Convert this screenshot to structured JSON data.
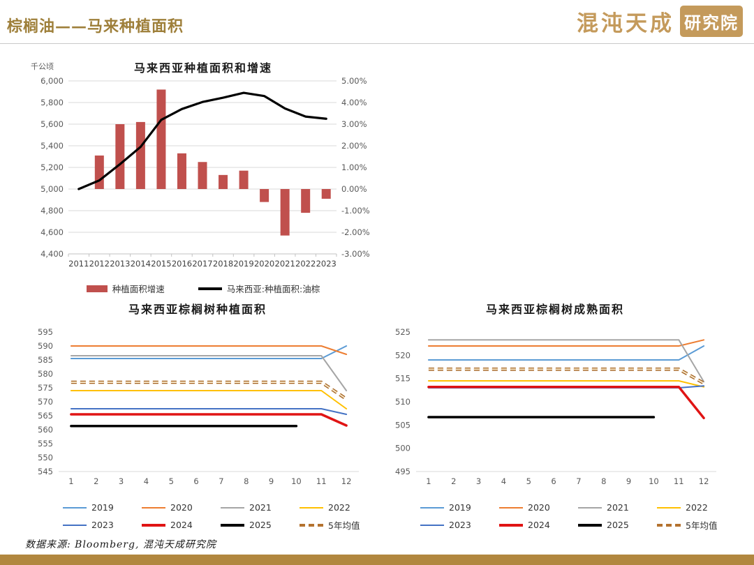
{
  "page": {
    "title": "棕榈油——马来种植面积",
    "logo": {
      "brand": "混沌天成",
      "suffix": "研究院"
    },
    "footer": {
      "source": "数据来源: Bloomberg, 混沌天成研究院"
    },
    "colors": {
      "accent_gold": "#9E7F3A",
      "logo_gold": "#C49A5B",
      "footer_bar": "#B1873F",
      "bar_red": "#C0504D",
      "grid_gray": "#DADADA",
      "axis_text": "#595959"
    }
  },
  "chart_data": [
    {
      "id": "area-growth",
      "type": "combo-bar-line",
      "title": "马来西亚种植面积和增速",
      "unit_label": "千公顷",
      "categories": [
        "2011",
        "2012",
        "2013",
        "2014",
        "2015",
        "2016",
        "2017",
        "2018",
        "2019",
        "2020",
        "2021",
        "2022",
        "2023"
      ],
      "left_axis": {
        "min": 4400,
        "max": 6000,
        "step": 200,
        "ticks": [
          "6,000",
          "5,800",
          "5,600",
          "5,400",
          "5,200",
          "5,000",
          "4,800",
          "4,600",
          "4,400"
        ]
      },
      "right_axis": {
        "min": -3,
        "max": 5,
        "step": 1,
        "ticks": [
          "5.00%",
          "4.00%",
          "3.00%",
          "2.00%",
          "1.00%",
          "0.00%",
          "-1.00%",
          "-2.00%",
          "-3.00%"
        ]
      },
      "grid": true,
      "legend_position": "bottom",
      "series": [
        {
          "name": "种植面积增速",
          "type": "bar",
          "axis": "right",
          "color": "#C0504D",
          "values": [
            null,
            1.55,
            3.0,
            3.1,
            4.6,
            1.65,
            1.25,
            0.65,
            0.85,
            -0.6,
            -2.15,
            -1.1,
            -0.45
          ]
        },
        {
          "name": "马来西亚:种植面积:油棕",
          "type": "line",
          "axis": "left",
          "color": "#000000",
          "width": 3.2,
          "values": [
            5000,
            5080,
            5230,
            5390,
            5640,
            5740,
            5805,
            5845,
            5890,
            5860,
            5745,
            5670,
            5650
          ]
        }
      ]
    },
    {
      "id": "planting-area",
      "type": "line",
      "title": "马来西亚棕榈树种植面积",
      "x": [
        1,
        2,
        3,
        4,
        5,
        6,
        7,
        8,
        9,
        10,
        11,
        12
      ],
      "ylim": [
        545,
        595
      ],
      "ystep": 5,
      "yticks": [
        "595",
        "590",
        "585",
        "580",
        "575",
        "570",
        "565",
        "560",
        "555",
        "550",
        "545"
      ],
      "grid": false,
      "legend_position": "bottom",
      "series": [
        {
          "name": "2019",
          "color": "#5B9BD5",
          "width": 2,
          "style": "solid",
          "values": [
            585.5,
            585.5,
            585.5,
            585.5,
            585.5,
            585.5,
            585.5,
            585.5,
            585.5,
            585.5,
            585.5,
            590
          ]
        },
        {
          "name": "2020",
          "color": "#ED7D31",
          "width": 2,
          "style": "solid",
          "values": [
            590,
            590,
            590,
            590,
            590,
            590,
            590,
            590,
            590,
            590,
            590,
            587
          ]
        },
        {
          "name": "2021",
          "color": "#A5A5A5",
          "width": 2,
          "style": "solid",
          "values": [
            586.5,
            586.5,
            586.5,
            586.5,
            586.5,
            586.5,
            586.5,
            586.5,
            586.5,
            586.5,
            586.5,
            574
          ]
        },
        {
          "name": "2022",
          "color": "#FFC000",
          "width": 2,
          "style": "solid",
          "values": [
            574,
            574,
            574,
            574,
            574,
            574,
            574,
            574,
            574,
            574,
            574,
            567.5
          ]
        },
        {
          "name": "2023",
          "color": "#4472C4",
          "width": 2,
          "style": "solid",
          "values": [
            567.5,
            567.5,
            567.5,
            567.5,
            567.5,
            567.5,
            567.5,
            567.5,
            567.5,
            567.5,
            567.5,
            565.5
          ]
        },
        {
          "name": "2024",
          "color": "#E01414",
          "width": 3.5,
          "style": "solid",
          "values": [
            565.5,
            565.5,
            565.5,
            565.5,
            565.5,
            565.5,
            565.5,
            565.5,
            565.5,
            565.5,
            565.5,
            561.5
          ]
        },
        {
          "name": "2025",
          "color": "#000000",
          "width": 3.5,
          "style": "solid",
          "values": [
            561.3,
            561.3,
            561.3,
            561.3,
            561.3,
            561.3,
            561.3,
            561.3,
            561.3,
            561.3,
            null,
            null
          ]
        },
        {
          "name": "5年均值",
          "color": "#A2601E",
          "width": 3,
          "style": "dashed",
          "values": [
            577,
            577,
            577,
            577,
            577,
            577,
            577,
            577,
            577,
            577,
            577,
            571
          ]
        }
      ]
    },
    {
      "id": "mature-area",
      "type": "line",
      "title": "马来西亚棕榈树成熟面积",
      "x": [
        1,
        2,
        3,
        4,
        5,
        6,
        7,
        8,
        9,
        10,
        11,
        12
      ],
      "ylim": [
        495,
        525
      ],
      "ystep": 5,
      "yticks": [
        "525",
        "520",
        "515",
        "510",
        "505",
        "500",
        "495"
      ],
      "grid": false,
      "legend_position": "bottom",
      "series": [
        {
          "name": "2019",
          "color": "#5B9BD5",
          "width": 2,
          "style": "solid",
          "values": [
            519,
            519,
            519,
            519,
            519,
            519,
            519,
            519,
            519,
            519,
            519,
            522
          ]
        },
        {
          "name": "2020",
          "color": "#ED7D31",
          "width": 2,
          "style": "solid",
          "values": [
            522,
            522,
            522,
            522,
            522,
            522,
            522,
            522,
            522,
            522,
            522,
            523.3
          ]
        },
        {
          "name": "2021",
          "color": "#A5A5A5",
          "width": 2,
          "style": "solid",
          "values": [
            523.3,
            523.3,
            523.3,
            523.3,
            523.3,
            523.3,
            523.3,
            523.3,
            523.3,
            523.3,
            523.3,
            514.3
          ]
        },
        {
          "name": "2022",
          "color": "#FFC000",
          "width": 2,
          "style": "solid",
          "values": [
            514.5,
            514.5,
            514.5,
            514.5,
            514.5,
            514.5,
            514.5,
            514.5,
            514.5,
            514.5,
            514.5,
            513.2
          ]
        },
        {
          "name": "2023",
          "color": "#4472C4",
          "width": 2,
          "style": "solid",
          "values": [
            513,
            513,
            513,
            513,
            513,
            513,
            513,
            513,
            513,
            513,
            513,
            513.4
          ]
        },
        {
          "name": "2024",
          "color": "#E01414",
          "width": 3.5,
          "style": "solid",
          "values": [
            513.2,
            513.2,
            513.2,
            513.2,
            513.2,
            513.2,
            513.2,
            513.2,
            513.2,
            513.2,
            513.2,
            506.5
          ]
        },
        {
          "name": "2025",
          "color": "#000000",
          "width": 3.5,
          "style": "solid",
          "values": [
            506.7,
            506.7,
            506.7,
            506.7,
            506.7,
            506.7,
            506.7,
            506.7,
            506.7,
            506.7,
            null,
            null
          ]
        },
        {
          "name": "5年均值",
          "color": "#A2601E",
          "width": 3,
          "style": "dashed",
          "values": [
            517,
            517,
            517,
            517,
            517,
            517,
            517,
            517,
            517,
            517,
            517,
            514
          ]
        }
      ]
    }
  ]
}
